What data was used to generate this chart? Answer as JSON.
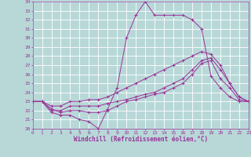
{
  "xlabel": "Windchill (Refroidissement éolien,°C)",
  "xlim": [
    0,
    23
  ],
  "ylim": [
    20,
    34
  ],
  "yticks": [
    20,
    21,
    22,
    23,
    24,
    25,
    26,
    27,
    28,
    29,
    30,
    31,
    32,
    33,
    34
  ],
  "xticks": [
    0,
    1,
    2,
    3,
    4,
    5,
    6,
    7,
    8,
    9,
    10,
    11,
    12,
    13,
    14,
    15,
    16,
    17,
    18,
    19,
    20,
    21,
    22,
    23
  ],
  "bg_color": "#b8d8d8",
  "grid_color": "#ffffff",
  "line_color": "#993399",
  "lines": [
    [
      23.0,
      23.0,
      21.8,
      21.5,
      21.5,
      21.0,
      20.8,
      20.0,
      22.2,
      24.5,
      30.0,
      32.5,
      34.0,
      32.5,
      32.5,
      32.5,
      32.5,
      32.0,
      31.0,
      25.8,
      24.5,
      23.5,
      23.0,
      23.0
    ],
    [
      23.0,
      23.0,
      22.2,
      21.8,
      22.0,
      22.0,
      21.8,
      21.8,
      22.0,
      22.5,
      23.0,
      23.2,
      23.5,
      23.8,
      24.0,
      24.5,
      25.0,
      26.0,
      27.2,
      27.5,
      25.5,
      24.5,
      23.2,
      23.0
    ],
    [
      23.0,
      23.0,
      22.0,
      22.0,
      22.5,
      22.5,
      22.5,
      22.5,
      22.8,
      23.0,
      23.2,
      23.5,
      23.8,
      24.0,
      24.5,
      25.0,
      25.5,
      26.5,
      27.5,
      27.8,
      26.5,
      25.0,
      23.5,
      23.0
    ],
    [
      23.0,
      23.0,
      22.5,
      22.5,
      23.0,
      23.0,
      23.2,
      23.2,
      23.5,
      24.0,
      24.5,
      25.0,
      25.5,
      26.0,
      26.5,
      27.0,
      27.5,
      28.0,
      28.5,
      28.2,
      27.0,
      25.0,
      23.5,
      23.0
    ]
  ]
}
